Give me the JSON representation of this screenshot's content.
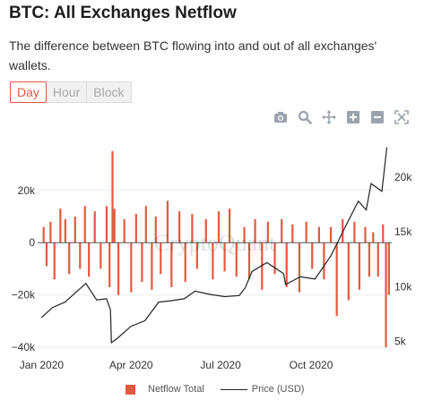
{
  "header": {
    "title": "BTC: All Exchanges Netflow",
    "subtitle": "The difference between BTC flowing into and out of all exchanges' wallets."
  },
  "tabs": [
    {
      "label": "Day",
      "active": true
    },
    {
      "label": "Hour",
      "active": false
    },
    {
      "label": "Block",
      "active": false
    }
  ],
  "toolbar": {
    "icons": [
      "camera-icon",
      "zoom-icon",
      "pan-icon",
      "zoom-in-icon",
      "zoom-out-icon",
      "autoscale-icon"
    ]
  },
  "watermark": "CryptoQuant",
  "colors": {
    "netflow": "#e3593f",
    "price": "#222222"
  },
  "chart_data": {
    "type": "bar",
    "x_ticks": [
      "Jan 2020",
      "Apr 2020",
      "Jul 2020",
      "Oct 2020"
    ],
    "x_range": [
      "2019-12-28",
      "2020-12-22"
    ],
    "y_left": {
      "ticks": [
        "−40k",
        "−20k",
        "0",
        "20k"
      ],
      "range": [
        -42000,
        36000
      ]
    },
    "y_right": {
      "ticks": [
        "5k",
        "10k",
        "15k",
        "20k"
      ],
      "range": [
        4000,
        22600
      ]
    },
    "legend": [
      {
        "name": "Netflow Total",
        "style": "bar"
      },
      {
        "name": "Price (USD)",
        "style": "line"
      }
    ],
    "series": [
      {
        "name": "Netflow Total",
        "axis": "left",
        "type": "bar",
        "points": [
          [
            "2020-01-03",
            6000
          ],
          [
            "2020-01-06",
            -9000
          ],
          [
            "2020-01-10",
            8000
          ],
          [
            "2020-01-14",
            -14000
          ],
          [
            "2020-01-20",
            13000
          ],
          [
            "2020-01-25",
            9000
          ],
          [
            "2020-01-29",
            -12000
          ],
          [
            "2020-02-04",
            10000
          ],
          [
            "2020-02-09",
            -10000
          ],
          [
            "2020-02-14",
            14000
          ],
          [
            "2020-02-18",
            -13000
          ],
          [
            "2020-02-24",
            12000
          ],
          [
            "2020-03-01",
            -10000
          ],
          [
            "2020-03-07",
            14000
          ],
          [
            "2020-03-10",
            -17000
          ],
          [
            "2020-03-13",
            35000
          ],
          [
            "2020-03-15",
            13000
          ],
          [
            "2020-03-19",
            -20000
          ],
          [
            "2020-03-25",
            9000
          ],
          [
            "2020-04-01",
            -19000
          ],
          [
            "2020-04-06",
            11000
          ],
          [
            "2020-04-12",
            -15000
          ],
          [
            "2020-04-16",
            14000
          ],
          [
            "2020-04-22",
            -18000
          ],
          [
            "2020-04-26",
            10000
          ],
          [
            "2020-05-01",
            -12000
          ],
          [
            "2020-05-08",
            16000
          ],
          [
            "2020-05-12",
            -17000
          ],
          [
            "2020-05-20",
            12000
          ],
          [
            "2020-05-26",
            -15000
          ],
          [
            "2020-06-02",
            11000
          ],
          [
            "2020-06-07",
            -10000
          ],
          [
            "2020-06-16",
            9000
          ],
          [
            "2020-06-23",
            -14000
          ],
          [
            "2020-06-29",
            12000
          ],
          [
            "2020-07-05",
            -11000
          ],
          [
            "2020-07-10",
            13000
          ],
          [
            "2020-07-17",
            -13000
          ],
          [
            "2020-07-25",
            6000
          ],
          [
            "2020-07-30",
            -14000
          ],
          [
            "2020-08-05",
            9000
          ],
          [
            "2020-08-12",
            -18000
          ],
          [
            "2020-08-18",
            8000
          ],
          [
            "2020-08-25",
            -12000
          ],
          [
            "2020-09-01",
            9000
          ],
          [
            "2020-09-06",
            -17000
          ],
          [
            "2020-09-12",
            7000
          ],
          [
            "2020-09-19",
            -19000
          ],
          [
            "2020-09-26",
            8000
          ],
          [
            "2020-10-02",
            -10000
          ],
          [
            "2020-10-09",
            6000
          ],
          [
            "2020-10-14",
            -14000
          ],
          [
            "2020-10-21",
            6000
          ],
          [
            "2020-10-27",
            -28000
          ],
          [
            "2020-11-02",
            9000
          ],
          [
            "2020-11-08",
            -22000
          ],
          [
            "2020-11-14",
            8000
          ],
          [
            "2020-11-19",
            -18000
          ],
          [
            "2020-11-25",
            6000
          ],
          [
            "2020-11-29",
            -13000
          ],
          [
            "2020-12-03",
            4000
          ],
          [
            "2020-12-08",
            -13000
          ],
          [
            "2020-12-13",
            7000
          ],
          [
            "2020-12-16",
            -40000
          ],
          [
            "2020-12-19",
            -20000
          ]
        ]
      },
      {
        "name": "Price (USD)",
        "axis": "right",
        "type": "line",
        "points": [
          [
            "2020-01-01",
            7200
          ],
          [
            "2020-01-12",
            8100
          ],
          [
            "2020-01-25",
            8600
          ],
          [
            "2020-02-05",
            9500
          ],
          [
            "2020-02-15",
            10300
          ],
          [
            "2020-02-26",
            8800
          ],
          [
            "2020-03-07",
            8900
          ],
          [
            "2020-03-11",
            7900
          ],
          [
            "2020-03-12",
            4900
          ],
          [
            "2020-03-18",
            5300
          ],
          [
            "2020-04-01",
            6400
          ],
          [
            "2020-04-15",
            6900
          ],
          [
            "2020-04-29",
            8600
          ],
          [
            "2020-05-10",
            8700
          ],
          [
            "2020-05-25",
            8900
          ],
          [
            "2020-06-05",
            9600
          ],
          [
            "2020-06-20",
            9300
          ],
          [
            "2020-07-05",
            9100
          ],
          [
            "2020-07-20",
            9200
          ],
          [
            "2020-07-26",
            9900
          ],
          [
            "2020-08-02",
            11400
          ],
          [
            "2020-08-17",
            12200
          ],
          [
            "2020-09-03",
            11200
          ],
          [
            "2020-09-05",
            10200
          ],
          [
            "2020-09-20",
            10900
          ],
          [
            "2020-10-05",
            10700
          ],
          [
            "2020-10-21",
            12800
          ],
          [
            "2020-11-05",
            15500
          ],
          [
            "2020-11-18",
            17800
          ],
          [
            "2020-11-26",
            17000
          ],
          [
            "2020-12-01",
            19400
          ],
          [
            "2020-12-12",
            18700
          ],
          [
            "2020-12-17",
            22700
          ]
        ]
      }
    ]
  }
}
